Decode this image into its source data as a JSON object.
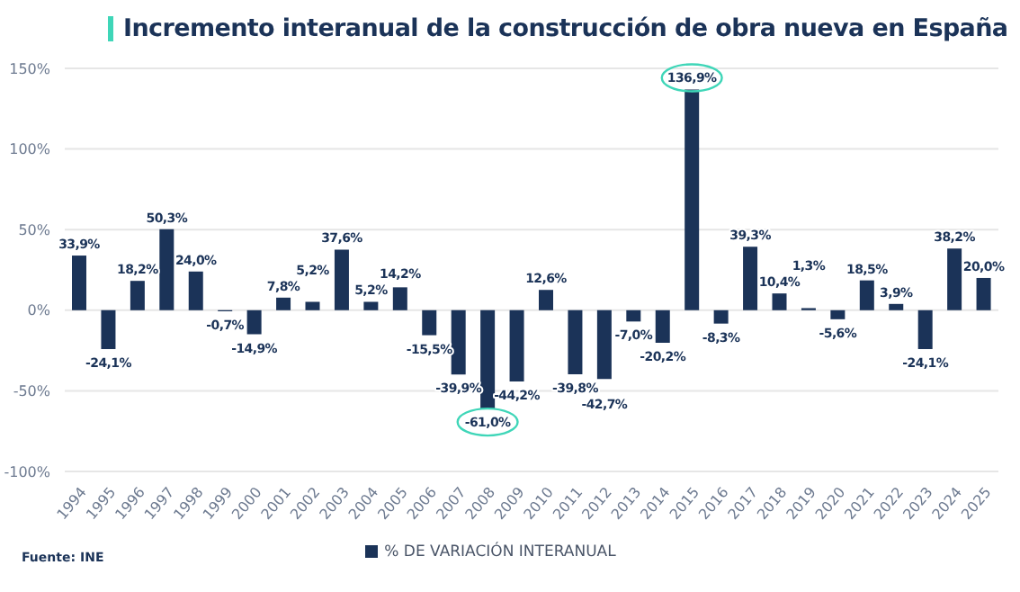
{
  "chart_data": {
    "type": "bar",
    "title": "Incremento interanual de la construcción de obra nueva en España",
    "categories": [
      "1994",
      "1995",
      "1996",
      "1997",
      "1998",
      "1999",
      "2000",
      "2001",
      "2002",
      "2003",
      "2004",
      "2005",
      "2006",
      "2007",
      "2008",
      "2009",
      "2010",
      "2011",
      "2012",
      "2013",
      "2014",
      "2015",
      "2016",
      "2017",
      "2018",
      "2019",
      "2020",
      "2021",
      "2022",
      "2023",
      "2024",
      "2025"
    ],
    "series": [
      {
        "name": "% DE VARIACIÓN INTERANUAL",
        "color": "#1b3358",
        "values": [
          33.9,
          -24.1,
          18.2,
          50.3,
          24.0,
          -0.7,
          -14.9,
          7.8,
          5.2,
          37.6,
          5.2,
          14.2,
          -15.5,
          -39.9,
          -61.0,
          -44.2,
          12.6,
          -39.8,
          -42.7,
          -7.0,
          -20.2,
          136.9,
          -8.3,
          39.3,
          10.4,
          1.3,
          -5.6,
          18.5,
          3.9,
          -24.1,
          38.2,
          20.0
        ],
        "value_labels": [
          "33,9%",
          "-24,1%",
          "18,2%",
          "50,3%",
          "24,0%",
          "-0,7%",
          "-14,9%",
          "7,8%",
          "5,2%",
          "37,6%",
          "5,2%",
          "14,2%",
          "-15,5%",
          "-39,9%",
          "-61,0%",
          "-44,2%",
          "12,6%",
          "-39,8%",
          "-42,7%",
          "-7,0%",
          "-20,2%",
          "136,9%",
          "-8,3%",
          "39,3%",
          "10,4%",
          "1,3%",
          "-5,6%",
          "18,5%",
          "3,9%",
          "-24,1%",
          "38,2%",
          "20,0%"
        ]
      }
    ],
    "ylim": [
      -100,
      150
    ],
    "yticks": [
      {
        "value": -100,
        "label": "-100%"
      },
      {
        "value": -50,
        "label": "-50%"
      },
      {
        "value": 0,
        "label": "0%"
      },
      {
        "value": 50,
        "label": "50%"
      },
      {
        "value": 100,
        "label": "100%"
      },
      {
        "value": 150,
        "label": "150%"
      }
    ],
    "grid": "y",
    "legend": "bottom",
    "annotations": [
      "Fuente: INE"
    ]
  }
}
